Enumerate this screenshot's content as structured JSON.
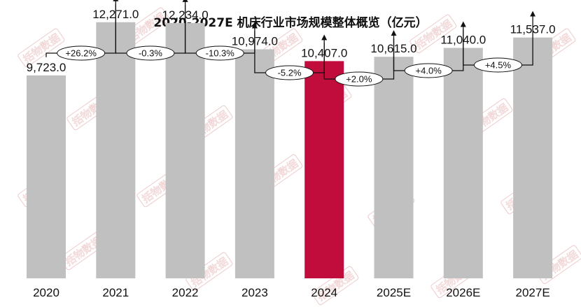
{
  "watermark": "括物数据",
  "chart_data": {
    "type": "bar",
    "title": "2020-2027E 机床行业市场规模整体概览（亿元）",
    "categories": [
      "2020",
      "2021",
      "2022",
      "2023",
      "2024",
      "2025E",
      "2026E",
      "2027E"
    ],
    "values": [
      9723.0,
      12271.0,
      12234.0,
      10974.0,
      10407.0,
      10615.0,
      11040.0,
      11537.0
    ],
    "value_labels": [
      "9,723.0",
      "12,271.0",
      "12,234.0",
      "10,974.0",
      "10,407.0",
      "10,615.0",
      "11,040.0",
      "11,537.0"
    ],
    "growth_labels": [
      "+26.2%",
      "-0.3%",
      "-10.3%",
      "-5.2%",
      "+2.0%",
      "+4.0%",
      "+4.5%"
    ],
    "highlight_index": 4,
    "colors": {
      "bar": "#c0c0c0",
      "highlight": "#c00d3c",
      "text": "#111111",
      "watermark": "#e8b9b9"
    },
    "ylim": [
      0,
      13000
    ],
    "grid": false,
    "legend": "none",
    "xlabel": "",
    "ylabel": ""
  }
}
